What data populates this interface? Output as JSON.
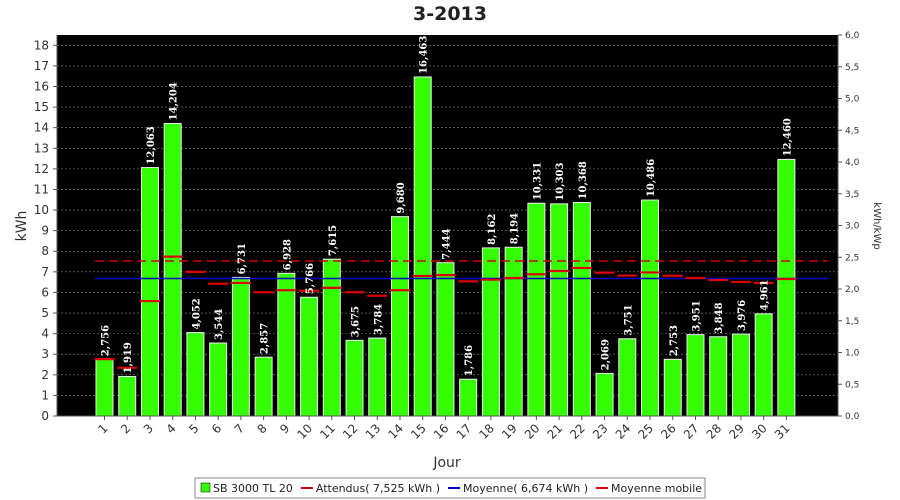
{
  "chart_data": {
    "type": "bar",
    "title": "3-2013",
    "xlabel": "Jour",
    "ylabel": "kWh",
    "ylabel_right": "kWh/kWp",
    "ylim": [
      0,
      18.5
    ],
    "ylim_right": [
      0,
      6.0
    ],
    "yticks": [
      "0",
      "1",
      "2",
      "3",
      "4",
      "5",
      "6",
      "7",
      "8",
      "9",
      "10",
      "11",
      "12",
      "13",
      "14",
      "15",
      "16",
      "17",
      "18"
    ],
    "yticks_right": [
      "0,0",
      "0,5",
      "1,0",
      "1,5",
      "2,0",
      "2,5",
      "3,0",
      "3,5",
      "4,0",
      "4,5",
      "5,0",
      "5,5",
      "6,0"
    ],
    "categories": [
      "1",
      "2",
      "3",
      "4",
      "5",
      "6",
      "7",
      "8",
      "9",
      "10",
      "11",
      "12",
      "13",
      "14",
      "15",
      "16",
      "17",
      "18",
      "19",
      "20",
      "21",
      "22",
      "23",
      "24",
      "25",
      "26",
      "27",
      "28",
      "29",
      "30",
      "31"
    ],
    "grid": true,
    "legend_position": "bottom",
    "series": [
      {
        "name": "SB 3000 TL 20",
        "type": "bar",
        "color": "#33ff00",
        "values": [
          2.756,
          1.919,
          12.063,
          14.204,
          4.052,
          3.544,
          6.731,
          2.857,
          6.928,
          5.766,
          7.615,
          3.675,
          3.784,
          9.68,
          16.463,
          7.444,
          1.786,
          8.162,
          8.194,
          10.331,
          10.303,
          10.368,
          2.069,
          3.751,
          10.486,
          2.753,
          3.951,
          3.848,
          3.976,
          4.961,
          12.46
        ],
        "labels": [
          "2,756",
          "1,919",
          "12,063",
          "14,204",
          "4,052",
          "3,544",
          "6,731",
          "2,857",
          "6,928",
          "5,766",
          "7,615",
          "3,675",
          "3,784",
          "9,680",
          "16,463",
          "7,444",
          "1,786",
          "8,162",
          "8,194",
          "10,331",
          "10,303",
          "10,368",
          "2,069",
          "3,751",
          "10,486",
          "2,753",
          "3,951",
          "3,848",
          "3,976",
          "4,961",
          "12,460"
        ]
      },
      {
        "name": "Attendus( 7,525 kWh )",
        "type": "hline-dashed",
        "color": "#cc0000",
        "value": 7.525
      },
      {
        "name": "Moyenne( 6,674 kWh )",
        "type": "hline",
        "color": "#0000cc",
        "value": 6.674
      },
      {
        "name": "Moyenne mobile",
        "type": "step",
        "color": "#dd0000",
        "values": [
          2.76,
          2.34,
          5.58,
          7.74,
          7.0,
          6.42,
          6.46,
          6.01,
          6.11,
          6.08,
          6.22,
          6.01,
          5.84,
          6.11,
          6.8,
          6.84,
          6.54,
          6.62,
          6.7,
          6.88,
          7.04,
          7.19,
          6.96,
          6.82,
          6.97,
          6.81,
          6.7,
          6.6,
          6.51,
          6.46,
          6.65
        ]
      }
    ]
  }
}
